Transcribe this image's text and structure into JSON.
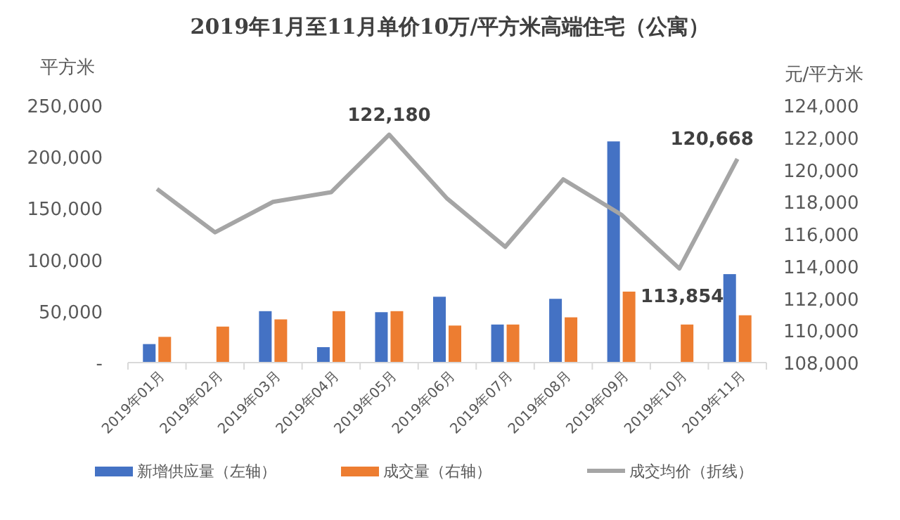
{
  "chart_data": {
    "type": "bar",
    "title": "2019年1月至11月单价10万/平方米高端住宅（公寓）",
    "ylabel": "平方米",
    "y2label": "元/平方米",
    "categories": [
      "2019年01月",
      "2019年02月",
      "2019年03月",
      "2019年04月",
      "2019年05月",
      "2019年06月",
      "2019年07月",
      "2019年08月",
      "2019年09月",
      "2019年10月",
      "2019年11月"
    ],
    "series": [
      {
        "name": "新增供应量（左轴）",
        "color": "#4472c4",
        "values": [
          18000,
          null,
          50000,
          15000,
          49000,
          64000,
          37000,
          62000,
          215000,
          null,
          86000
        ]
      },
      {
        "name": "成交量（右轴）",
        "color": "#ed7d31",
        "values": [
          25000,
          35000,
          42000,
          50000,
          50000,
          36000,
          37000,
          44000,
          69000,
          37000,
          46000
        ]
      },
      {
        "name": "成交均价（折线）",
        "color": "#a5a5a5",
        "type": "line",
        "axis": "y2",
        "values": [
          118800,
          116100,
          118000,
          118600,
          122180,
          118200,
          115200,
          119400,
          117200,
          113854,
          120668
        ],
        "value_labels": [
          null,
          null,
          null,
          null,
          "122,180",
          null,
          null,
          null,
          null,
          "113,854",
          "120,668"
        ]
      }
    ],
    "ylim": [
      0,
      250000
    ],
    "yticks": [
      {
        "value": 0,
        "label": "-"
      },
      {
        "value": 50000,
        "label": "50,000"
      },
      {
        "value": 100000,
        "label": "100,000"
      },
      {
        "value": 150000,
        "label": "150,000"
      },
      {
        "value": 200000,
        "label": "200,000"
      },
      {
        "value": 250000,
        "label": "250,000"
      }
    ],
    "y2lim": [
      108000,
      124000
    ],
    "y2ticks": [
      {
        "value": 108000,
        "label": "108,000"
      },
      {
        "value": 110000,
        "label": "110,000"
      },
      {
        "value": 112000,
        "label": "112,000"
      },
      {
        "value": 114000,
        "label": "114,000"
      },
      {
        "value": 116000,
        "label": "116,000"
      },
      {
        "value": 118000,
        "label": "118,000"
      },
      {
        "value": 120000,
        "label": "120,000"
      },
      {
        "value": 122000,
        "label": "122,000"
      },
      {
        "value": 124000,
        "label": "124,000"
      }
    ],
    "grid": false,
    "legend": "bottom",
    "marker": "none",
    "line_style": "solid"
  }
}
